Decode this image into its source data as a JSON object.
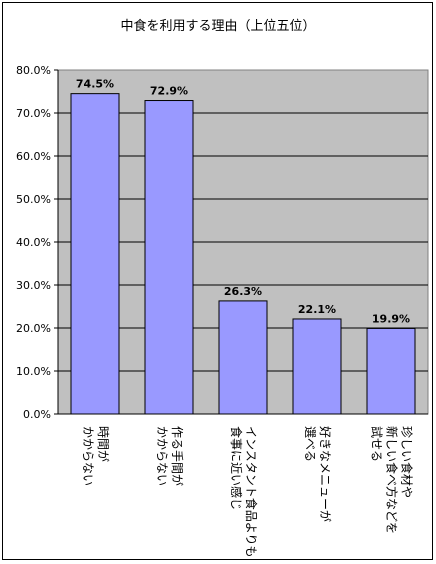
{
  "chart_data": {
    "type": "bar",
    "title": "中食を利用する理由（上位五位）",
    "categories": [
      [
        "時間が",
        "かからない"
      ],
      [
        "作る手間が",
        "かからない"
      ],
      [
        "インスタント食品よりも",
        "食事に近い感じ"
      ],
      [
        "好きなメニューが",
        "選べる"
      ],
      [
        "珍しい食材や",
        "新しい食べ方などを",
        "試せる"
      ]
    ],
    "values": [
      74.5,
      72.9,
      26.3,
      22.1,
      19.9
    ],
    "value_labels": [
      "74.5%",
      "72.9%",
      "26.3%",
      "22.1%",
      "19.9%"
    ],
    "y_ticks": [
      "0.0%",
      "10.0%",
      "20.0%",
      "30.0%",
      "40.0%",
      "50.0%",
      "60.0%",
      "70.0%",
      "80.0%"
    ],
    "ylim": [
      0,
      80
    ],
    "grid": true,
    "colors": {
      "bar_fill": "#9999ff",
      "bar_stroke": "#000000",
      "plot_bg": "#c0c0c0",
      "grid": "#000000"
    }
  }
}
